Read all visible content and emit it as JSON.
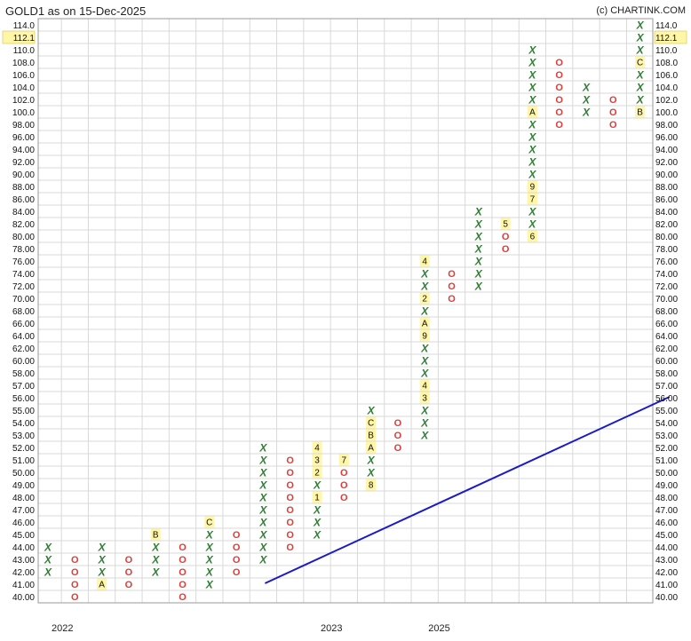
{
  "header": {
    "title": "GOLD1 as on 15-Dec-2025",
    "copyright": "(c) CHARTINK.COM"
  },
  "colors": {
    "x_mark": "#2e7d32",
    "o_mark": "#e53935",
    "trendline": "#1a1acc",
    "month_highlight": "#fff6a8",
    "last_price_highlight": "#fff6a8",
    "grid": "#d9d9d9"
  },
  "chart_data": {
    "type": "point-and-figure",
    "title": "GOLD1 as on 15-Dec-2025",
    "y_levels": [
      "114.0",
      "112.1",
      "110.0",
      "108.0",
      "106.0",
      "104.0",
      "102.0",
      "100.0",
      "98.00",
      "96.00",
      "94.00",
      "92.00",
      "90.00",
      "88.00",
      "86.00",
      "84.00",
      "82.00",
      "80.00",
      "78.00",
      "76.00",
      "74.00",
      "72.00",
      "70.00",
      "68.00",
      "66.00",
      "64.00",
      "62.00",
      "60.00",
      "58.00",
      "57.00",
      "56.00",
      "55.00",
      "54.00",
      "53.00",
      "52.00",
      "51.00",
      "50.00",
      "49.00",
      "48.00",
      "47.00",
      "46.00",
      "45.00",
      "44.00",
      "43.00",
      "42.00",
      "41.00",
      "40.00"
    ],
    "last_price": "112.1",
    "x_axis_labels": [
      {
        "label": "2022",
        "column": 1
      },
      {
        "label": "2023",
        "column": 11
      },
      {
        "label": "2025",
        "column": 15
      }
    ],
    "columns": [
      {
        "type": "X",
        "cells": [
          [
            "44.00",
            "X"
          ],
          [
            "43.00",
            "X"
          ],
          [
            "42.00",
            "X"
          ]
        ]
      },
      {
        "type": "O",
        "cells": [
          [
            "43.00",
            "O"
          ],
          [
            "42.00",
            "O"
          ],
          [
            "41.00",
            "O"
          ],
          [
            "40.00",
            "O"
          ]
        ]
      },
      {
        "type": "X",
        "cells": [
          [
            "44.00",
            "X"
          ],
          [
            "43.00",
            "X"
          ],
          [
            "42.00",
            "X"
          ],
          [
            "41.00",
            "A"
          ]
        ]
      },
      {
        "type": "O",
        "cells": [
          [
            "43.00",
            "O"
          ],
          [
            "42.00",
            "O"
          ],
          [
            "41.00",
            "O"
          ]
        ]
      },
      {
        "type": "X",
        "cells": [
          [
            "45.00",
            "B"
          ],
          [
            "44.00",
            "X"
          ],
          [
            "43.00",
            "X"
          ],
          [
            "42.00",
            "X"
          ]
        ]
      },
      {
        "type": "O",
        "cells": [
          [
            "44.00",
            "O"
          ],
          [
            "43.00",
            "O"
          ],
          [
            "42.00",
            "O"
          ],
          [
            "41.00",
            "O"
          ],
          [
            "40.00",
            "O"
          ]
        ]
      },
      {
        "type": "X",
        "cells": [
          [
            "46.00",
            "C"
          ],
          [
            "45.00",
            "X"
          ],
          [
            "44.00",
            "X"
          ],
          [
            "43.00",
            "X"
          ],
          [
            "42.00",
            "X"
          ],
          [
            "41.00",
            "X"
          ]
        ]
      },
      {
        "type": "O",
        "cells": [
          [
            "45.00",
            "O"
          ],
          [
            "44.00",
            "O"
          ],
          [
            "43.00",
            "O"
          ],
          [
            "42.00",
            "O"
          ]
        ]
      },
      {
        "type": "X",
        "cells": [
          [
            "52.00",
            "X"
          ],
          [
            "51.00",
            "X"
          ],
          [
            "50.00",
            "X"
          ],
          [
            "49.00",
            "X"
          ],
          [
            "48.00",
            "X"
          ],
          [
            "47.00",
            "X"
          ],
          [
            "46.00",
            "X"
          ],
          [
            "45.00",
            "X"
          ],
          [
            "44.00",
            "X"
          ],
          [
            "43.00",
            "X"
          ]
        ]
      },
      {
        "type": "O",
        "cells": [
          [
            "51.00",
            "O"
          ],
          [
            "50.00",
            "O"
          ],
          [
            "49.00",
            "O"
          ],
          [
            "48.00",
            "O"
          ],
          [
            "47.00",
            "O"
          ],
          [
            "46.00",
            "O"
          ],
          [
            "45.00",
            "O"
          ],
          [
            "44.00",
            "O"
          ]
        ]
      },
      {
        "type": "X",
        "cells": [
          [
            "52.00",
            "4"
          ],
          [
            "51.00",
            "3"
          ],
          [
            "50.00",
            "2"
          ],
          [
            "49.00",
            "X"
          ],
          [
            "48.00",
            "1"
          ],
          [
            "47.00",
            "X"
          ],
          [
            "46.00",
            "X"
          ],
          [
            "45.00",
            "X"
          ]
        ]
      },
      {
        "type": "O",
        "cells": [
          [
            "51.00",
            "7"
          ],
          [
            "50.00",
            "O"
          ],
          [
            "49.00",
            "O"
          ],
          [
            "48.00",
            "O"
          ]
        ]
      },
      {
        "type": "X",
        "cells": [
          [
            "55.00",
            "X"
          ],
          [
            "54.00",
            "C"
          ],
          [
            "53.00",
            "B"
          ],
          [
            "52.00",
            "A"
          ],
          [
            "51.00",
            "X"
          ],
          [
            "50.00",
            "X"
          ],
          [
            "49.00",
            "8"
          ]
        ]
      },
      {
        "type": "O",
        "cells": [
          [
            "54.00",
            "O"
          ],
          [
            "53.00",
            "O"
          ],
          [
            "52.00",
            "O"
          ]
        ]
      },
      {
        "type": "X",
        "cells": [
          [
            "76.00",
            "4"
          ],
          [
            "74.00",
            "X"
          ],
          [
            "72.00",
            "X"
          ],
          [
            "70.00",
            "2"
          ],
          [
            "68.00",
            "X"
          ],
          [
            "66.00",
            "A"
          ],
          [
            "64.00",
            "9"
          ],
          [
            "62.00",
            "X"
          ],
          [
            "60.00",
            "X"
          ],
          [
            "58.00",
            "X"
          ],
          [
            "57.00",
            "4"
          ],
          [
            "56.00",
            "3"
          ],
          [
            "55.00",
            "X"
          ],
          [
            "54.00",
            "X"
          ],
          [
            "53.00",
            "X"
          ]
        ]
      },
      {
        "type": "O",
        "cells": [
          [
            "74.00",
            "O"
          ],
          [
            "72.00",
            "O"
          ],
          [
            "70.00",
            "O"
          ]
        ]
      },
      {
        "type": "X",
        "cells": [
          [
            "84.00",
            "X"
          ],
          [
            "82.00",
            "X"
          ],
          [
            "80.00",
            "X"
          ],
          [
            "78.00",
            "X"
          ],
          [
            "76.00",
            "X"
          ],
          [
            "74.00",
            "X"
          ],
          [
            "72.00",
            "X"
          ]
        ]
      },
      {
        "type": "O",
        "cells": [
          [
            "82.00",
            "5"
          ],
          [
            "80.00",
            "O"
          ],
          [
            "78.00",
            "O"
          ]
        ]
      },
      {
        "type": "X",
        "cells": [
          [
            "110.0",
            "X"
          ],
          [
            "108.0",
            "X"
          ],
          [
            "106.0",
            "X"
          ],
          [
            "104.0",
            "X"
          ],
          [
            "102.0",
            "X"
          ],
          [
            "100.0",
            "A"
          ],
          [
            "98.00",
            "X"
          ],
          [
            "96.00",
            "X"
          ],
          [
            "94.00",
            "X"
          ],
          [
            "92.00",
            "X"
          ],
          [
            "90.00",
            "X"
          ],
          [
            "88.00",
            "9"
          ],
          [
            "86.00",
            "7"
          ],
          [
            "84.00",
            "X"
          ],
          [
            "82.00",
            "X"
          ],
          [
            "80.00",
            "6"
          ]
        ]
      },
      {
        "type": "O",
        "cells": [
          [
            "108.0",
            "O"
          ],
          [
            "106.0",
            "O"
          ],
          [
            "104.0",
            "O"
          ],
          [
            "102.0",
            "O"
          ],
          [
            "100.0",
            "O"
          ],
          [
            "98.00",
            "O"
          ]
        ]
      },
      {
        "type": "X",
        "cells": [
          [
            "104.0",
            "X"
          ],
          [
            "102.0",
            "X"
          ],
          [
            "100.0",
            "X"
          ]
        ]
      },
      {
        "type": "O",
        "cells": [
          [
            "102.0",
            "O"
          ],
          [
            "100.0",
            "O"
          ],
          [
            "98.00",
            "O"
          ]
        ]
      },
      {
        "type": "X",
        "cells": [
          [
            "114.0",
            "X"
          ],
          [
            "112.1",
            "X"
          ],
          [
            "110.0",
            "X"
          ],
          [
            "108.0",
            "C"
          ],
          [
            "106.0",
            "X"
          ],
          [
            "104.0",
            "X"
          ],
          [
            "102.0",
            "X"
          ],
          [
            "100.0",
            "B"
          ]
        ]
      }
    ],
    "trendline": {
      "start": {
        "column": 8,
        "level": "41.00"
      },
      "end": {
        "column": 23,
        "level": "56.00"
      }
    },
    "grid": true
  }
}
